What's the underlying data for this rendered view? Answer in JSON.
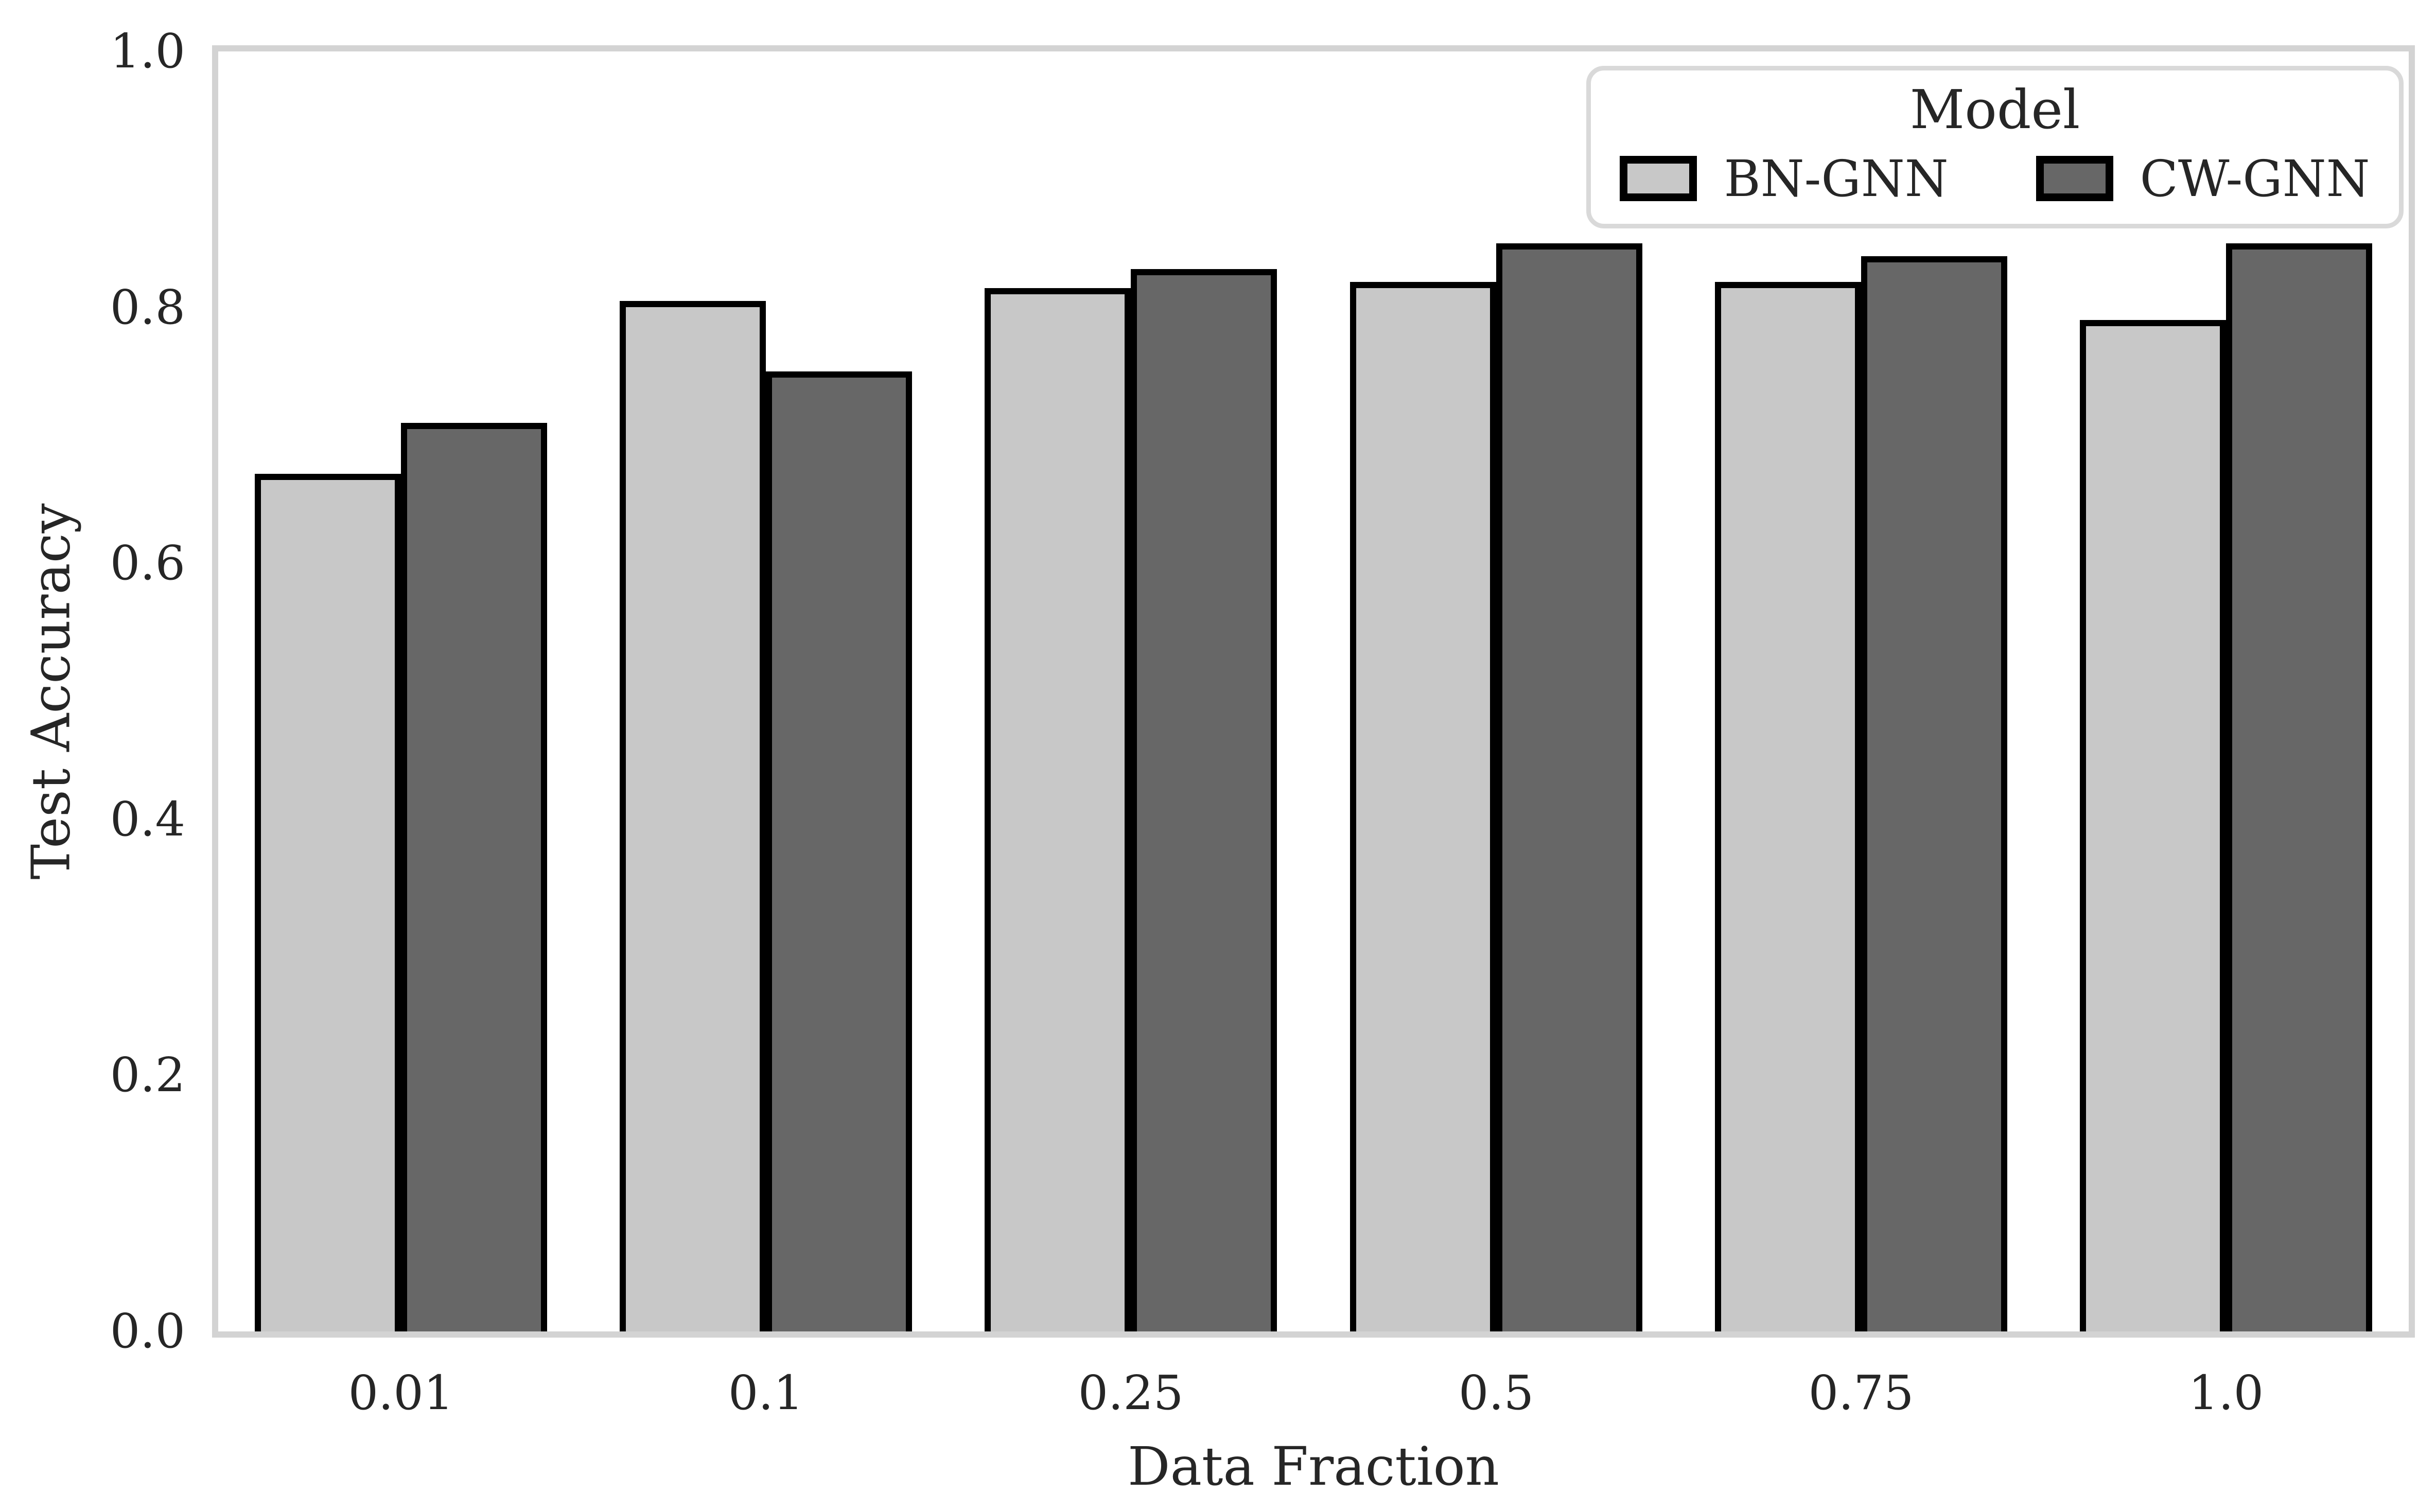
{
  "chart_data": {
    "type": "bar",
    "title": "",
    "xlabel": "Data Fraction",
    "ylabel": "Test Accuracy",
    "categories": [
      "0.01",
      "0.1",
      "0.25",
      "0.5",
      "0.75",
      "1.0"
    ],
    "series": [
      {
        "name": "BN-GNN",
        "color": "#c8c8c8",
        "values": [
          0.67,
          0.805,
          0.815,
          0.82,
          0.82,
          0.79
        ]
      },
      {
        "name": "CW-GNN",
        "color": "#676767",
        "values": [
          0.71,
          0.75,
          0.83,
          0.85,
          0.84,
          0.85
        ]
      }
    ],
    "bar_edge_color": "#000000",
    "ylim": [
      0.0,
      1.0
    ],
    "yticks": [
      "0.0",
      "0.2",
      "0.4",
      "0.6",
      "0.8",
      "1.0"
    ],
    "grid": "off",
    "legend": {
      "title": "Model",
      "position": "upper right",
      "entries": [
        "BN-GNN",
        "CW-GNN"
      ]
    },
    "spine_color": "#d3d3d3",
    "background_color": "#ffffff",
    "text_color": "#262626"
  }
}
